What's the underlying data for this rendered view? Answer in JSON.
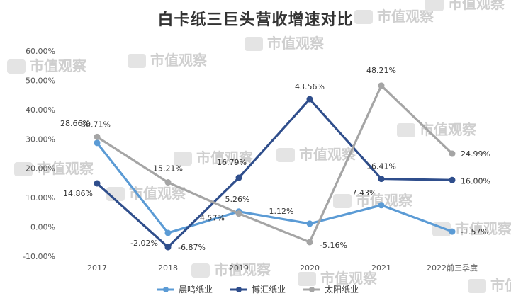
{
  "chart_data": {
    "type": "line",
    "title": "白卡纸三巨头营收增速对比",
    "categories": [
      "2017",
      "2018",
      "2019",
      "2020",
      "2021",
      "2022前三季度"
    ],
    "y_ticks": [
      "60.00%",
      "50.00%",
      "40.00%",
      "30.00%",
      "20.00%",
      "10.00%",
      "0.00%",
      "-10.00%"
    ],
    "ylim": [
      -10,
      60
    ],
    "legend_position": "bottom",
    "grid": false,
    "series": [
      {
        "name": "晨鸣纸业",
        "color": "#5b9bd5",
        "values": [
          28.66,
          -2.02,
          5.26,
          1.12,
          7.43,
          -1.57
        ],
        "labels": [
          "28.66%",
          "-2.02%",
          "5.26%",
          "1.12%",
          "7.43%",
          "-1.57%"
        ]
      },
      {
        "name": "博汇纸业",
        "color": "#2f4e8c",
        "values": [
          14.86,
          -6.87,
          16.79,
          43.56,
          16.41,
          16.0
        ],
        "labels": [
          "14.86%",
          "-6.87%",
          "16.79%",
          "43.56%",
          "16.41%",
          "16.00%"
        ]
      },
      {
        "name": "太阳纸业",
        "color": "#a5a5a5",
        "values": [
          30.71,
          15.21,
          4.57,
          -5.16,
          48.21,
          24.99
        ],
        "labels": [
          "30.71%",
          "15.21%",
          "4.57%",
          "-5.16%",
          "48.21%",
          "24.99%"
        ]
      }
    ]
  },
  "watermark": {
    "text": "市值观察"
  }
}
